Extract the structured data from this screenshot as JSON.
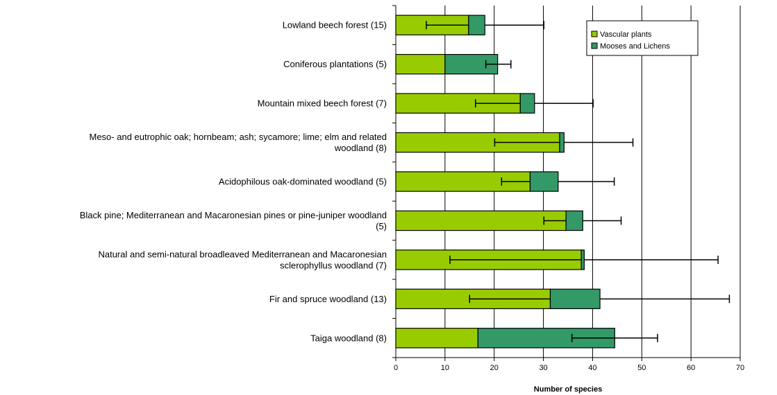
{
  "chart_data": {
    "type": "bar",
    "orientation": "horizontal",
    "stacked": true,
    "xlabel": "Number of species",
    "ylabel": "",
    "xlim": [
      0,
      70
    ],
    "xticks": [
      0,
      10,
      20,
      30,
      40,
      50,
      60,
      70
    ],
    "grid": "vertical",
    "legend_position": "top-right",
    "categories": [
      [
        "Lowland beech forest (15)"
      ],
      [
        "Coniferous plantations (5)"
      ],
      [
        "Mountain mixed beech forest (7)"
      ],
      [
        "Meso- and eutrophic oak; hornbeam; ash; sycamore; lime; elm and related",
        "woodland (8)"
      ],
      [
        "Acidophilous oak-dominated woodland (5)"
      ],
      [
        "Black pine; Mediterranean and Macaronesian pines or pine-juniper woodland",
        "(5)"
      ],
      [
        "Natural and semi-natural broadleaved Mediterranean and Macaronesian",
        "sclerophyllus woodland (7)"
      ],
      [
        "Fir and spruce woodland (13)"
      ],
      [
        "Taiga woodland (8)"
      ]
    ],
    "series": [
      {
        "name": "Vascular plants",
        "color": "#99cc00",
        "values": [
          14.8,
          10.0,
          25.3,
          33.3,
          27.3,
          34.6,
          37.7,
          31.4,
          16.7
        ],
        "error_low": [
          6.2,
          null,
          16.2,
          20.1,
          21.5,
          30.1,
          11.0,
          15.0,
          null
        ],
        "error_high": [
          null,
          null,
          null,
          null,
          null,
          null,
          null,
          null,
          null
        ]
      },
      {
        "name": "Mooses and Lichens",
        "color": "#339966",
        "values": [
          3.3,
          10.7,
          2.9,
          0.9,
          5.7,
          3.4,
          0.6,
          10.1,
          27.8
        ],
        "error_low": [
          null,
          18.3,
          null,
          null,
          null,
          null,
          null,
          null,
          35.8
        ],
        "error_high": [
          30.1,
          23.4,
          40.1,
          48.2,
          44.4,
          45.8,
          65.5,
          67.8,
          53.2
        ]
      }
    ]
  }
}
